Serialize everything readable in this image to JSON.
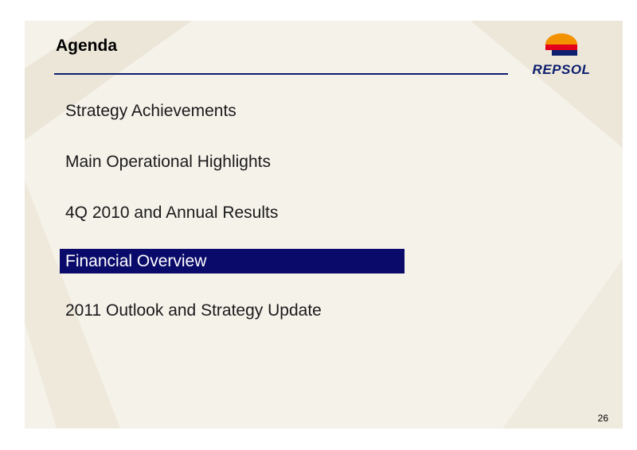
{
  "slide": {
    "title": "Agenda",
    "logo_text": "REPSOL",
    "agenda_items": [
      {
        "label": "Strategy Achievements",
        "active": false
      },
      {
        "label": "Main Operational Highlights",
        "active": false
      },
      {
        "label": "4Q 2010 and Annual Results",
        "active": false
      },
      {
        "label": "Financial Overview",
        "active": true
      },
      {
        "label": "2011 Outlook and Strategy Update",
        "active": false
      }
    ],
    "page_number": "26"
  },
  "colors": {
    "background": "#f5f2ea",
    "title_rule": "#0d1f6e",
    "highlight": "#0a0a6b",
    "logo_orange": "#f39200",
    "logo_red": "#e2001a",
    "logo_navy": "#0d1f6e"
  }
}
